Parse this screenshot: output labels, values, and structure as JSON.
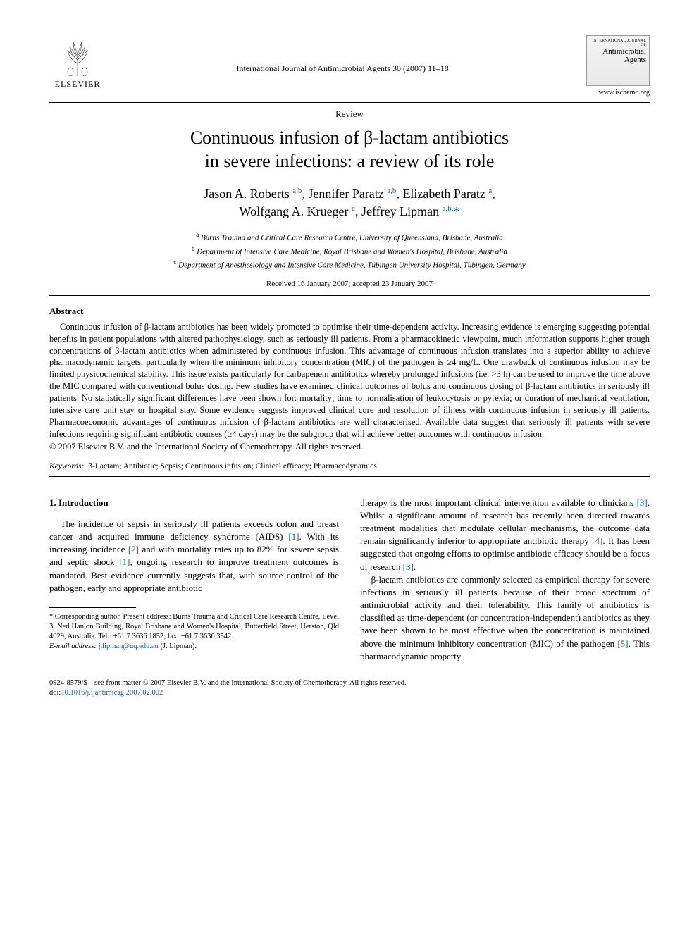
{
  "publisher": {
    "name": "ELSEVIER"
  },
  "journal": {
    "reference_line": "International Journal of Antimicrobial Agents 30 (2007) 11–18",
    "cover_pretitle": "INTERNATIONAL JOURNAL OF",
    "cover_title": "Antimicrobial Agents",
    "url": "www.ischemo.org"
  },
  "article": {
    "type": "Review",
    "title_line1": "Continuous infusion of β-lactam antibiotics",
    "title_line2": "in severe infections: a review of its role",
    "authors_line1_html": "Jason A. Roberts <sup>a,b</sup>, Jennifer Paratz <sup>a,b</sup>, Elizabeth Paratz <sup>a</sup>,",
    "authors_line2_html": "Wolfgang A. Krueger <sup>c</sup>, Jeffrey Lipman <sup>a,b,</sup><span class=\"star\">*</span>",
    "affiliations": {
      "a": "Burns Trauma and Critical Care Research Centre, University of Queensland, Brisbane, Australia",
      "b": "Department of Intensive Care Medicine, Royal Brisbane and Women's Hospital, Brisbane, Australia",
      "c": "Department of Anesthesiology and Intensive Care Medicine, Tübingen University Hospital, Tübingen, Germany"
    },
    "dates": "Received 16 January 2007; accepted 23 January 2007"
  },
  "abstract": {
    "heading": "Abstract",
    "body": "Continuous infusion of β-lactam antibiotics has been widely promoted to optimise their time-dependent activity. Increasing evidence is emerging suggesting potential benefits in patient populations with altered pathophysiology, such as seriously ill patients. From a pharmacokinetic viewpoint, much information supports higher trough concentrations of β-lactam antibiotics when administered by continuous infusion. This advantage of continuous infusion translates into a superior ability to achieve pharmacodynamic targets, particularly when the minimum inhibitory concentration (MIC) of the pathogen is ≥4 mg/L. One drawback of continuous infusion may be limited physicochemical stability. This issue exists particularly for carbapenem antibiotics whereby prolonged infusions (i.e. >3 h) can be used to improve the time above the MIC compared with conventional bolus dosing. Few studies have examined clinical outcomes of bolus and continuous dosing of β-lactam antibiotics in seriously ill patients. No statistically significant differences have been shown for: mortality; time to normalisation of leukocytosis or pyrexia; or duration of mechanical ventilation, intensive care unit stay or hospital stay. Some evidence suggests improved clinical cure and resolution of illness with continuous infusion in seriously ill patients. Pharmacoeconomic advantages of continuous infusion of β-lactam antibiotics are well characterised. Available data suggest that seriously ill patients with severe infections requiring significant antibiotic courses (≥4 days) may be the subgroup that will achieve better outcomes with continuous infusion.",
    "copyright": "© 2007 Elsevier B.V. and the International Society of Chemotherapy. All rights reserved."
  },
  "keywords": {
    "label": "Keywords:",
    "list": "β-Lactam; Antibiotic; Sepsis; Continuous infusion; Clinical efficacy; Pharmacodynamics"
  },
  "body": {
    "section1_heading": "1. Introduction",
    "col1_p1_html": "The incidence of sepsis in seriously ill patients exceeds colon and breast cancer and acquired immune deficiency syndrome (AIDS) <span class=\"cite\">[1]</span>. With its increasing incidence <span class=\"cite\">[2]</span> and with mortality rates up to 82% for severe sepsis and septic shock <span class=\"cite\">[1]</span>, ongoing research to improve treatment outcomes is mandated. Best evidence currently suggests that, with source control of the pathogen, early and appropriate antibiotic",
    "col2_p1_html": "therapy is the most important clinical intervention available to clinicians <span class=\"cite\">[3]</span>. Whilst a significant amount of research has recently been directed towards treatment modalities that modulate cellular mechanisms, the outcome data remain significantly inferior to appropriate antibiotic therapy <span class=\"cite\">[4]</span>. It has been suggested that ongoing efforts to optimise antibiotic efficacy should be a focus of research <span class=\"cite\">[3]</span>.",
    "col2_p2_html": "β-lactam antibiotics are commonly selected as empirical therapy for severe infections in seriously ill patients because of their broad spectrum of antimicrobial activity and their tolerability. This family of antibiotics is classified as time-dependent (or concentration-independent) antibiotics as they have been shown to be most effective when the concentration is maintained above the minimum inhibitory concentration (MIC) of the pathogen <span class=\"cite\">[5]</span>. This pharmacodynamic property"
  },
  "footnote": {
    "corr_html": "<span class=\"star\">*</span> Corresponding author. Present address: Burns Trauma and Critical Care Research Centre, Level 3, Ned Hanlon Building, Royal Brisbane and Women's Hospital, Butterfield Street, Herston, Qld 4029, Australia. Tel.: +61 7 3636 1852; fax: +61 7 3636 3542.",
    "email_label": "E-mail address:",
    "email": "j.lipman@uq.edu.au",
    "email_name": "(J. Lipman)."
  },
  "footer": {
    "line1": "0924-8579/$ – see front matter © 2007 Elsevier B.V. and the International Society of Chemotherapy. All rights reserved.",
    "doi_label": "doi:",
    "doi": "10.1016/j.ijantimicag.2007.02.002"
  },
  "colors": {
    "link": "#0066cc",
    "text": "#000000",
    "background": "#ffffff"
  }
}
